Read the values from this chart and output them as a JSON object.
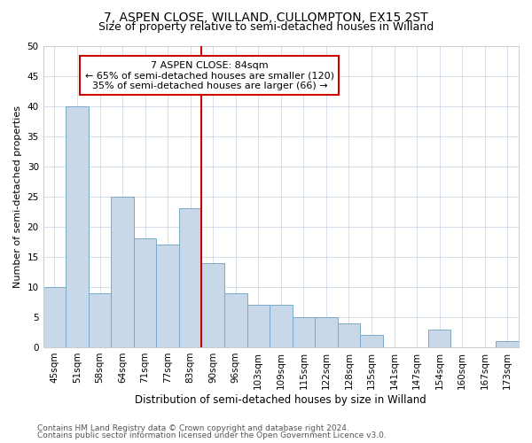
{
  "title1": "7, ASPEN CLOSE, WILLAND, CULLOMPTON, EX15 2ST",
  "title2": "Size of property relative to semi-detached houses in Willand",
  "xlabel": "Distribution of semi-detached houses by size in Willand",
  "ylabel": "Number of semi-detached properties",
  "categories": [
    "45sqm",
    "51sqm",
    "58sqm",
    "64sqm",
    "71sqm",
    "77sqm",
    "83sqm",
    "90sqm",
    "96sqm",
    "103sqm",
    "109sqm",
    "115sqm",
    "122sqm",
    "128sqm",
    "135sqm",
    "141sqm",
    "147sqm",
    "154sqm",
    "160sqm",
    "167sqm",
    "173sqm"
  ],
  "values": [
    10,
    40,
    9,
    25,
    18,
    17,
    23,
    14,
    9,
    7,
    7,
    5,
    5,
    4,
    2,
    0,
    0,
    3,
    0,
    0,
    1
  ],
  "bar_color": "#c8d8e8",
  "bar_edge_color": "#7aaac8",
  "vline_index": 6,
  "vline_color": "#cc0000",
  "annotation_title": "7 ASPEN CLOSE: 84sqm",
  "annotation_line1": "← 65% of semi-detached houses are smaller (120)",
  "annotation_line2": "35% of semi-detached houses are larger (66) →",
  "annotation_box_color": "#cc0000",
  "ylim": [
    0,
    50
  ],
  "yticks": [
    0,
    5,
    10,
    15,
    20,
    25,
    30,
    35,
    40,
    45,
    50
  ],
  "footnote1": "Contains HM Land Registry data © Crown copyright and database right 2024.",
  "footnote2": "Contains public sector information licensed under the Open Government Licence v3.0.",
  "bg_color": "#ffffff",
  "grid_color": "#d0d8e8",
  "title1_fontsize": 10,
  "title2_fontsize": 9,
  "xlabel_fontsize": 8.5,
  "ylabel_fontsize": 8,
  "tick_fontsize": 7.5,
  "annot_fontsize": 8,
  "footnote_fontsize": 6.5
}
